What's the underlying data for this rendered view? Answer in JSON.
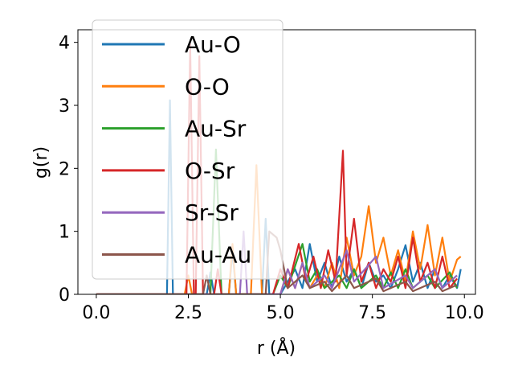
{
  "chart_data": {
    "type": "line",
    "title": "",
    "xlabel": "r (Å)",
    "ylabel": "g(r)",
    "xlim": [
      -0.5,
      10.3
    ],
    "ylim": [
      0,
      4.2
    ],
    "xticks": [
      0,
      2.5,
      5,
      7.5,
      10
    ],
    "xtick_labels": [
      "0.0",
      "2.5",
      "5.0",
      "7.5",
      "10.0"
    ],
    "yticks": [
      0,
      1,
      2,
      3,
      4
    ],
    "ytick_labels": [
      "0",
      "1",
      "2",
      "3",
      "4"
    ],
    "grid": false,
    "legend_position": "upper-left",
    "series": [
      {
        "name": "Au-O",
        "color": "#1f77b4",
        "points": [
          [
            0,
            0
          ],
          [
            1.8,
            0
          ],
          [
            1.92,
            0
          ],
          [
            2.0,
            3.08
          ],
          [
            2.08,
            0
          ],
          [
            2.2,
            0
          ],
          [
            3.0,
            0
          ],
          [
            3.1,
            0.35
          ],
          [
            3.2,
            0
          ],
          [
            3.6,
            0
          ],
          [
            3.7,
            0.7
          ],
          [
            3.8,
            0
          ],
          [
            4.5,
            0
          ],
          [
            4.6,
            1.2
          ],
          [
            4.7,
            0
          ],
          [
            5.0,
            0
          ],
          [
            5.2,
            0.2
          ],
          [
            5.4,
            0.4
          ],
          [
            5.6,
            0.1
          ],
          [
            5.8,
            0.8
          ],
          [
            6.0,
            0.2
          ],
          [
            6.2,
            0.5
          ],
          [
            6.4,
            0.1
          ],
          [
            6.6,
            0.6
          ],
          [
            6.8,
            0.2
          ],
          [
            7.0,
            0.4
          ],
          [
            7.2,
            0.1
          ],
          [
            7.4,
            0.5
          ],
          [
            7.6,
            0.2
          ],
          [
            7.8,
            0.3
          ],
          [
            8.0,
            0.1
          ],
          [
            8.2,
            0.4
          ],
          [
            8.4,
            0.78
          ],
          [
            8.6,
            0.2
          ],
          [
            8.8,
            0.5
          ],
          [
            9.0,
            0.1
          ],
          [
            9.2,
            0.4
          ],
          [
            9.4,
            0.1
          ],
          [
            9.6,
            0.3
          ],
          [
            9.8,
            0.1
          ],
          [
            9.9,
            0.4
          ]
        ]
      },
      {
        "name": "O-O",
        "color": "#ff7f0e",
        "points": [
          [
            0,
            0
          ],
          [
            2.4,
            0
          ],
          [
            2.5,
            0.3
          ],
          [
            2.6,
            0
          ],
          [
            3.6,
            0
          ],
          [
            3.7,
            0.8
          ],
          [
            3.8,
            0
          ],
          [
            4.2,
            0
          ],
          [
            4.35,
            2.05
          ],
          [
            4.5,
            0
          ],
          [
            5.0,
            0
          ],
          [
            5.2,
            0.4
          ],
          [
            5.4,
            0.1
          ],
          [
            5.6,
            0.5
          ],
          [
            5.8,
            0.1
          ],
          [
            6.0,
            0.3
          ],
          [
            6.2,
            0.1
          ],
          [
            6.4,
            0.5
          ],
          [
            6.6,
            0.1
          ],
          [
            6.8,
            0.9
          ],
          [
            7.0,
            0.3
          ],
          [
            7.2,
            0.6
          ],
          [
            7.4,
            1.4
          ],
          [
            7.6,
            0.5
          ],
          [
            7.8,
            0.9
          ],
          [
            8.0,
            0.3
          ],
          [
            8.2,
            0.7
          ],
          [
            8.4,
            0.2
          ],
          [
            8.6,
            1.0
          ],
          [
            8.8,
            0.4
          ],
          [
            9.0,
            1.1
          ],
          [
            9.2,
            0.3
          ],
          [
            9.4,
            0.9
          ],
          [
            9.6,
            0.2
          ],
          [
            9.8,
            0.55
          ],
          [
            9.9,
            0.6
          ]
        ]
      },
      {
        "name": "Au-Sr",
        "color": "#2ca02c",
        "points": [
          [
            0,
            0
          ],
          [
            3.1,
            0
          ],
          [
            3.25,
            2.3
          ],
          [
            3.4,
            0
          ],
          [
            4.8,
            0
          ],
          [
            5.0,
            0.3
          ],
          [
            5.2,
            0.1
          ],
          [
            5.6,
            0.8
          ],
          [
            5.8,
            0.2
          ],
          [
            6.0,
            0.4
          ],
          [
            6.2,
            0.1
          ],
          [
            6.6,
            0.3
          ],
          [
            6.8,
            0.1
          ],
          [
            7.0,
            0.4
          ],
          [
            7.2,
            0.1
          ],
          [
            7.6,
            0.3
          ],
          [
            7.8,
            0.1
          ],
          [
            8.0,
            0.35
          ],
          [
            8.2,
            0.1
          ],
          [
            8.4,
            0.4
          ],
          [
            8.6,
            0.1
          ],
          [
            9.0,
            0.3
          ],
          [
            9.2,
            0.1
          ],
          [
            9.6,
            0.35
          ],
          [
            9.8,
            0.1
          ]
        ]
      },
      {
        "name": "O-Sr",
        "color": "#d62728",
        "points": [
          [
            0,
            0
          ],
          [
            2.45,
            0
          ],
          [
            2.55,
            3.98
          ],
          [
            2.65,
            0
          ],
          [
            2.7,
            0
          ],
          [
            2.8,
            3.78
          ],
          [
            2.9,
            0
          ],
          [
            3.2,
            0
          ],
          [
            3.3,
            0.4
          ],
          [
            3.4,
            0
          ],
          [
            4.8,
            0
          ],
          [
            5.0,
            0.4
          ],
          [
            5.2,
            0.1
          ],
          [
            5.5,
            0.8
          ],
          [
            5.7,
            0.2
          ],
          [
            5.9,
            0.6
          ],
          [
            6.1,
            0.1
          ],
          [
            6.3,
            0.7
          ],
          [
            6.5,
            0.2
          ],
          [
            6.7,
            2.28
          ],
          [
            6.8,
            0.3
          ],
          [
            7.0,
            1.2
          ],
          [
            7.2,
            0.2
          ],
          [
            7.4,
            0.5
          ],
          [
            7.6,
            0.1
          ],
          [
            7.8,
            0.4
          ],
          [
            8.0,
            0.2
          ],
          [
            8.2,
            0.6
          ],
          [
            8.4,
            0.1
          ],
          [
            8.6,
            0.9
          ],
          [
            8.8,
            0.2
          ],
          [
            9.0,
            0.5
          ],
          [
            9.2,
            0.1
          ],
          [
            9.4,
            0.6
          ],
          [
            9.6,
            0.1
          ],
          [
            9.8,
            0.25
          ]
        ]
      },
      {
        "name": "Sr-Sr",
        "color": "#9467bd",
        "points": [
          [
            0,
            0
          ],
          [
            3.9,
            0
          ],
          [
            4.0,
            1.0
          ],
          [
            4.1,
            0
          ],
          [
            5.0,
            0
          ],
          [
            5.2,
            0.4
          ],
          [
            5.4,
            0.1
          ],
          [
            5.6,
            0.5
          ],
          [
            5.8,
            0.1
          ],
          [
            6.2,
            0.3
          ],
          [
            6.4,
            0.1
          ],
          [
            6.8,
            0.7
          ],
          [
            7.0,
            0.2
          ],
          [
            7.6,
            0.6
          ],
          [
            7.8,
            0.1
          ],
          [
            8.4,
            0.3
          ],
          [
            8.6,
            0.1
          ],
          [
            9.2,
            0.4
          ],
          [
            9.4,
            0.1
          ],
          [
            9.8,
            0.3
          ]
        ]
      },
      {
        "name": "Au-Au",
        "color": "#8c564b",
        "points": [
          [
            0,
            0
          ],
          [
            2.9,
            0
          ],
          [
            3.0,
            0.3
          ],
          [
            3.1,
            0
          ],
          [
            4.6,
            0
          ],
          [
            4.7,
            1.0
          ],
          [
            4.9,
            0.9
          ],
          [
            5.0,
            0.7
          ],
          [
            5.2,
            0.1
          ],
          [
            5.6,
            0.3
          ],
          [
            5.8,
            0.1
          ],
          [
            6.2,
            0.2
          ],
          [
            6.4,
            0.05
          ],
          [
            6.8,
            0.3
          ],
          [
            7.0,
            0.1
          ],
          [
            7.6,
            0.25
          ],
          [
            7.8,
            0.05
          ],
          [
            8.4,
            0.2
          ],
          [
            8.6,
            0.05
          ],
          [
            9.2,
            0.2
          ],
          [
            9.4,
            0.05
          ],
          [
            9.8,
            0.15
          ]
        ]
      }
    ]
  }
}
